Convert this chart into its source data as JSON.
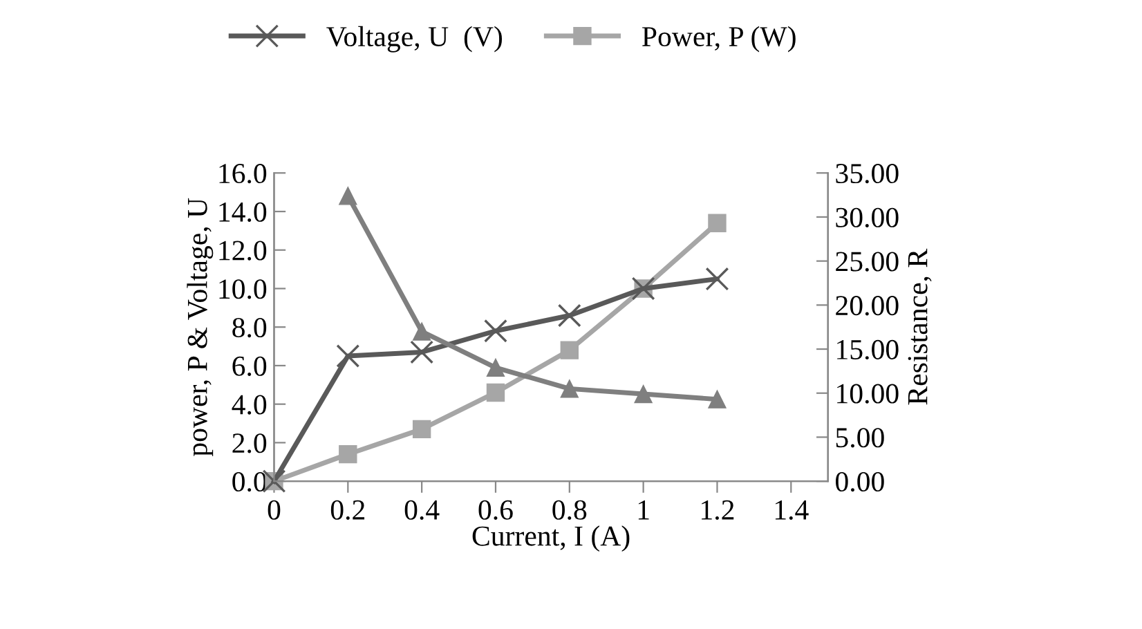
{
  "chart_data": {
    "type": "line",
    "xlabel": "Current, I (A)",
    "ylabel": "power, P & Voltage, U",
    "y2label": "Resistance, R",
    "x": [
      0,
      0.2,
      0.4,
      0.6,
      0.8,
      1.0,
      1.2
    ],
    "series": [
      {
        "name": "Voltage, U  (V)",
        "color": "#595959",
        "marker": "cross",
        "values": [
          0,
          6.5,
          6.7,
          7.8,
          8.6,
          10.0,
          10.5
        ]
      },
      {
        "name": "Power, P (W)",
        "color": "#a6a6a6",
        "marker": "square",
        "values": [
          0,
          1.4,
          2.7,
          4.6,
          6.8,
          10.0,
          13.4
        ]
      },
      {
        "color": "#7f7f7f",
        "marker": "triangle",
        "axis": "y2",
        "values": [
          null,
          32.4,
          17.0,
          12.9,
          10.5,
          9.9,
          9.3
        ]
      }
    ],
    "xlim": [
      0,
      1.5
    ],
    "xticks": [
      {
        "value": 0,
        "label": "0"
      },
      {
        "value": 0.2,
        "label": "0.2"
      },
      {
        "value": 0.4,
        "label": "0.4"
      },
      {
        "value": 0.6,
        "label": "0.6"
      },
      {
        "value": 0.8,
        "label": "0.8"
      },
      {
        "value": 1.0,
        "label": "1"
      },
      {
        "value": 1.2,
        "label": "1.2"
      },
      {
        "value": 1.4,
        "label": "1.4"
      }
    ],
    "ylim": [
      0,
      16
    ],
    "yticks": [
      {
        "value": 0,
        "label": "0.0"
      },
      {
        "value": 2,
        "label": "2.0"
      },
      {
        "value": 4,
        "label": "4.0"
      },
      {
        "value": 6,
        "label": "6.0"
      },
      {
        "value": 8,
        "label": "8.0"
      },
      {
        "value": 10,
        "label": "10.0"
      },
      {
        "value": 12,
        "label": "12.0"
      },
      {
        "value": 14,
        "label": "14.0"
      },
      {
        "value": 16,
        "label": "16.0"
      }
    ],
    "y2lim": [
      0,
      35
    ],
    "y2ticks": [
      {
        "value": 0,
        "label": "0.00"
      },
      {
        "value": 5,
        "label": "5.00"
      },
      {
        "value": 10,
        "label": "10.00"
      },
      {
        "value": 15,
        "label": "15.00"
      },
      {
        "value": 20,
        "label": "20.00"
      },
      {
        "value": 25,
        "label": "25.00"
      },
      {
        "value": 30,
        "label": "30.00"
      },
      {
        "value": 35,
        "label": "35.00"
      }
    ],
    "legend": "top",
    "grid": false,
    "line_style": "solid"
  }
}
